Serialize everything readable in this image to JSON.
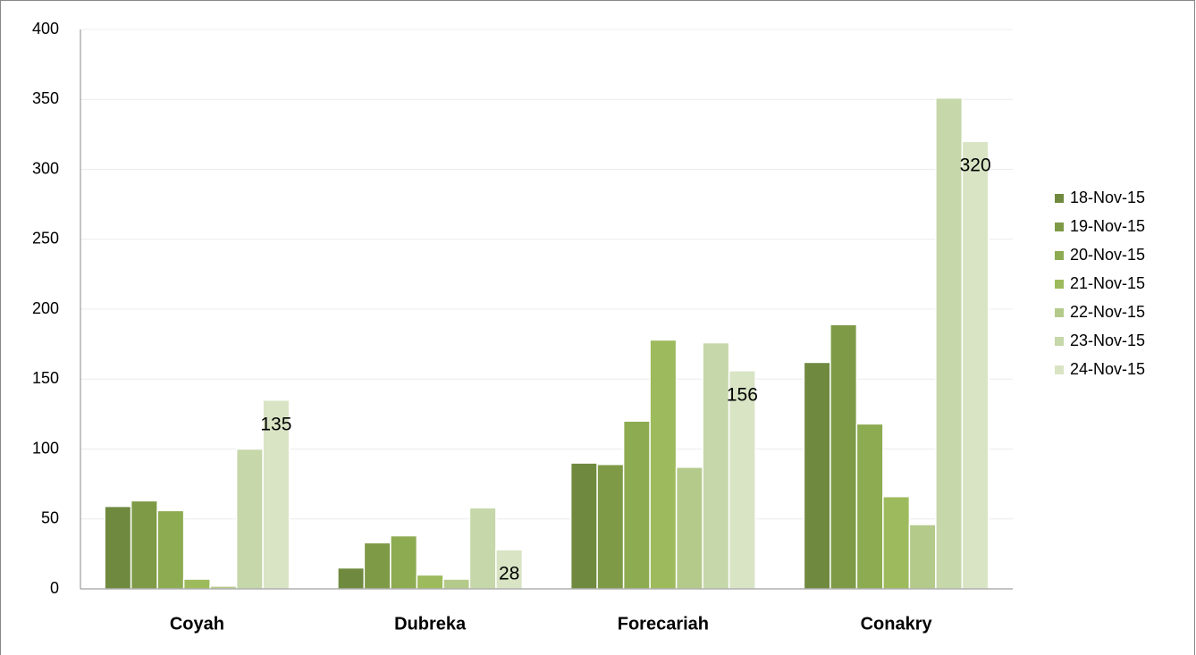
{
  "chart_data": {
    "type": "bar",
    "categories": [
      "Coyah",
      "Dubreka",
      "Forecariah",
      "Conakry"
    ],
    "series": [
      {
        "name": "18-Nov-15",
        "color": "#6f8a3f",
        "values": [
          59,
          15,
          90,
          162
        ]
      },
      {
        "name": "19-Nov-15",
        "color": "#7e9a47",
        "values": [
          63,
          33,
          89,
          189
        ]
      },
      {
        "name": "20-Nov-15",
        "color": "#8dab51",
        "values": [
          56,
          38,
          120,
          118
        ]
      },
      {
        "name": "21-Nov-15",
        "color": "#9dbb5c",
        "values": [
          7,
          10,
          178,
          66
        ]
      },
      {
        "name": "22-Nov-15",
        "color": "#b4ca8b",
        "values": [
          2,
          7,
          87,
          46
        ]
      },
      {
        "name": "23-Nov-15",
        "color": "#c6d7aa",
        "values": [
          100,
          58,
          176,
          351
        ]
      },
      {
        "name": "24-Nov-15",
        "color": "#d8e4c4",
        "values": [
          135,
          28,
          156,
          320
        ]
      }
    ],
    "labeled_series": 6,
    "ylim": [
      0,
      400
    ],
    "yticks": [
      0,
      50,
      100,
      150,
      200,
      250,
      300,
      350,
      400
    ],
    "grid": true,
    "legend": "right"
  }
}
